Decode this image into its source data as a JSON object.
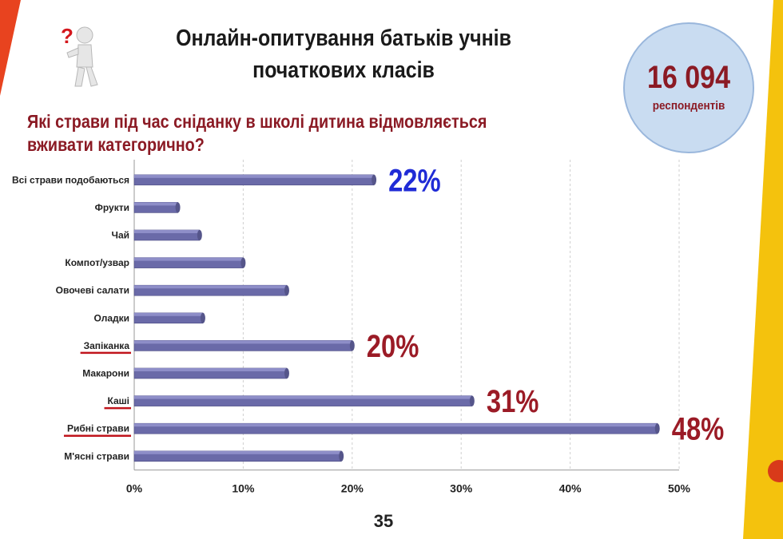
{
  "title_line1": "Онлайн-опитування батьків учнів",
  "title_line2": "початкових класів",
  "question_line1": "Які страви під час сніданку в школі дитина відмовляється",
  "question_line2": "вживати категорично?",
  "respondents": {
    "count": "16 094",
    "label": "респондентів"
  },
  "page_number": "35",
  "colors": {
    "bar": "#6a6aa8",
    "bar_top": "#8e8ec8",
    "title": "#1a1a1a",
    "question": "#8b1a24",
    "label_blue": "#1f2bd6",
    "label_red": "#9b1b26",
    "underline": "#c0141c",
    "circle_fill": "#c9dcf1",
    "accent_left": "#e8431f",
    "accent_right": "#f4c20d"
  },
  "chart_data": {
    "type": "bar",
    "orientation": "horizontal",
    "categories": [
      "Всі страви подобаються",
      "Фрукти",
      "Чай",
      "Компот/узвар",
      "Овочеві салати",
      "Оладки",
      "Запіканка",
      "Макарони",
      "Каші",
      "Рибні страви",
      "М'ясні страви"
    ],
    "values": [
      22,
      4,
      6,
      10,
      14,
      6.3,
      20,
      14,
      31,
      48,
      19
    ],
    "data_labels": [
      {
        "category_index": 0,
        "text": "22%",
        "color": "#1f2bd6"
      },
      {
        "category_index": 6,
        "text": "20%",
        "color": "#9b1b26"
      },
      {
        "category_index": 8,
        "text": "31%",
        "color": "#9b1b26"
      },
      {
        "category_index": 9,
        "text": "48%",
        "color": "#9b1b26"
      }
    ],
    "underlined_categories": [
      6,
      8,
      9
    ],
    "xlim": [
      0,
      50
    ],
    "xticks": [
      "0%",
      "10%",
      "20%",
      "30%",
      "40%",
      "50%"
    ],
    "grid": "vertical dashed",
    "legend": "none"
  }
}
